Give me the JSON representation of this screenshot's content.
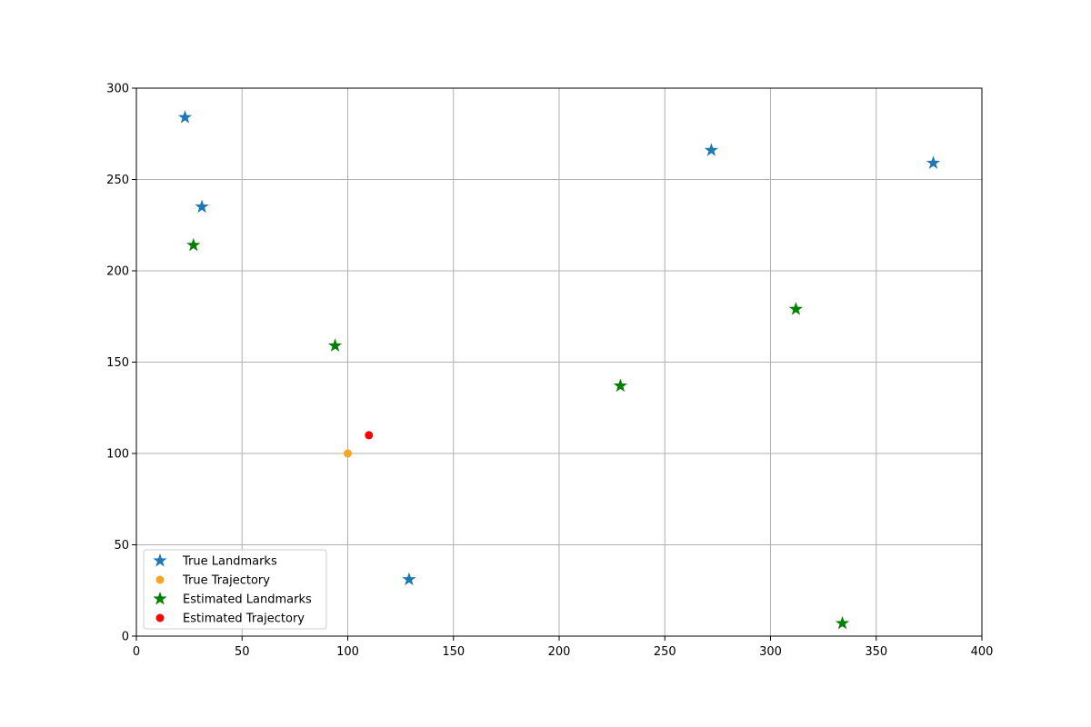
{
  "chart_data": {
    "type": "scatter",
    "title": "",
    "xlabel": "",
    "ylabel": "",
    "xlim": [
      0,
      400
    ],
    "ylim": [
      0,
      300
    ],
    "x_ticks": [
      0,
      50,
      100,
      150,
      200,
      250,
      300,
      350,
      400
    ],
    "y_ticks": [
      0,
      50,
      100,
      150,
      200,
      250,
      300
    ],
    "x_tick_labels": [
      "0",
      "50",
      "100",
      "150",
      "200",
      "250",
      "300",
      "350",
      "400"
    ],
    "y_tick_labels": [
      "0",
      "50",
      "100",
      "150",
      "200",
      "250",
      "300"
    ],
    "grid": true,
    "legend_position": "lower-left",
    "series": [
      {
        "name": "True Landmarks",
        "marker": "star",
        "color": "#1f77b4",
        "points": [
          [
            23,
            284
          ],
          [
            31,
            235
          ],
          [
            272,
            266
          ],
          [
            377,
            259
          ],
          [
            129,
            31
          ]
        ]
      },
      {
        "name": "True Trajectory",
        "marker": "circle",
        "color": "#f5a623",
        "points": [
          [
            100,
            100
          ]
        ]
      },
      {
        "name": "Estimated Landmarks",
        "marker": "star",
        "color": "#008000",
        "points": [
          [
            27,
            214
          ],
          [
            94,
            159
          ],
          [
            229,
            137
          ],
          [
            312,
            179
          ],
          [
            334,
            7
          ]
        ]
      },
      {
        "name": "Estimated Trajectory",
        "marker": "circle",
        "color": "#ff0000",
        "points": [
          [
            110,
            110
          ]
        ]
      }
    ]
  }
}
